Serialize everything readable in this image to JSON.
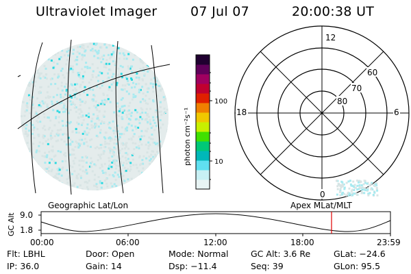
{
  "header": {
    "instrument": "Ultraviolet Imager",
    "date": "07 Jul 07",
    "time": "20:00:38 UT"
  },
  "colorbar": {
    "unit_label": "photon cm⁻²s⁻¹",
    "ticks": [
      "100",
      "10"
    ]
  },
  "polar_plot": {
    "mlt_labels": {
      "top": "12",
      "right": "6",
      "bottom": "0",
      "left": "18"
    },
    "lat_labels": [
      "60",
      "70",
      "80"
    ]
  },
  "timeline": {
    "left_label": "Geographic Lat/Lon",
    "right_label": "Apex  MLat/MLT",
    "axis_title": "GC Alt",
    "y_ticks": [
      "9.0",
      "1.8"
    ],
    "x_ticks": [
      "00:00",
      "06:00",
      "12:00",
      "18:00",
      "23:59"
    ],
    "marker_color": "#e00000"
  },
  "footer": {
    "flt": "Flt: LBHL",
    "door": "Door: Open",
    "mode": "Mode: Normal",
    "gc_alt": "GC Alt: 3.6 Re",
    "glat": "GLat: −24.6",
    "ip": "IP: 36.0",
    "gain": "Gain: 14",
    "dsp": "Dsp:  −11.4",
    "seq": "Seq: 39",
    "glon": "GLon:  95.5"
  },
  "colors": {
    "glow_low": "#d8e4e4",
    "glow_mid": "#a8eaf0",
    "glow_high": "#2ad8e0"
  }
}
